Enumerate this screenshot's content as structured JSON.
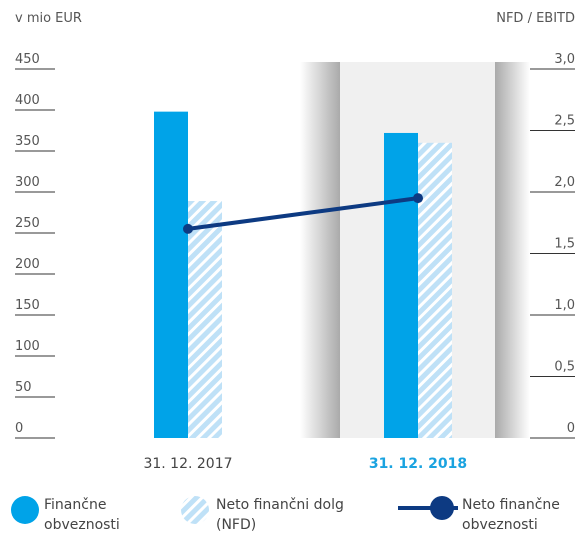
{
  "chart_data": {
    "type": "bar",
    "y_label": "v mio EUR",
    "y2_label": "NFD / EBITD",
    "categories": [
      "31. 12. 2017",
      "31. 12. 2018"
    ],
    "ylim": [
      0,
      450
    ],
    "yticks": [
      0,
      50,
      100,
      150,
      200,
      250,
      300,
      350,
      400,
      450
    ],
    "y2lim": [
      0,
      3
    ],
    "y2ticks": [
      0,
      {
        "value": 0.5,
        "label": "0,5"
      },
      {
        "value": 1,
        "label": "1,0"
      },
      {
        "value": 1.5,
        "label": "1,5"
      },
      {
        "value": 2,
        "label": "2,0"
      },
      {
        "value": 2.5,
        "label": "2,5"
      },
      {
        "value": 3,
        "label": "3,0"
      }
    ],
    "series": [
      {
        "name": "Finančne obveznosti",
        "color": "#00a3e8",
        "kind": "bar",
        "values": [
          398,
          372
        ]
      },
      {
        "name": "Neto finančni dolg (NFD)",
        "color": "#bfe1f7",
        "kind": "hatched-bar",
        "values": [
          289,
          360
        ]
      },
      {
        "name": "Neto finančne obveznosti",
        "color": "#0d3a82",
        "kind": "line",
        "axis": "y2",
        "values": [
          1.7,
          1.95
        ]
      }
    ]
  }
}
